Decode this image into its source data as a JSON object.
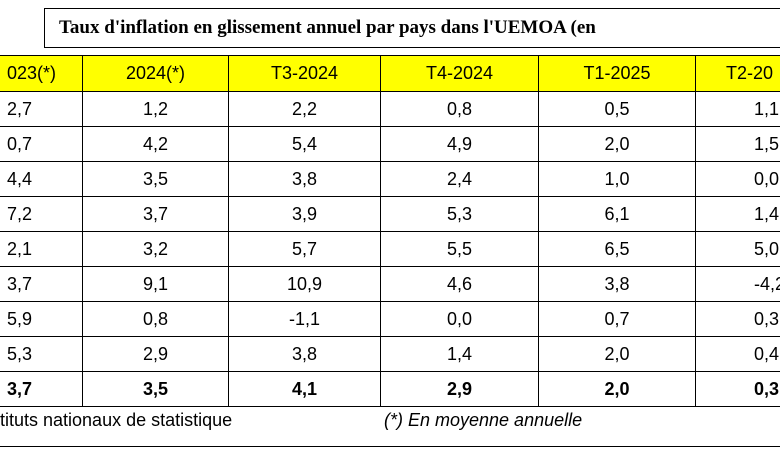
{
  "title": "Taux d'inflation en glissement annuel par pays dans l'UEMOA (en",
  "table": {
    "header": [
      "023(*)",
      "2024(*)",
      "T3-2024",
      "T4-2024",
      "T1-2025",
      "T2-20"
    ],
    "rows": [
      [
        "2,7",
        "1,2",
        "2,2",
        "0,8",
        "0,5",
        "1,1"
      ],
      [
        "0,7",
        "4,2",
        "5,4",
        "4,9",
        "2,0",
        "1,5"
      ],
      [
        "4,4",
        "3,5",
        "3,8",
        "2,4",
        "1,0",
        "0,0"
      ],
      [
        "7,2",
        "3,7",
        "3,9",
        "5,3",
        "6,1",
        "1,4"
      ],
      [
        "2,1",
        "3,2",
        "5,7",
        "5,5",
        "6,5",
        "5,0"
      ],
      [
        "3,7",
        "9,1",
        "10,9",
        "4,6",
        "3,8",
        "-4,2"
      ],
      [
        "5,9",
        "0,8",
        "-1,1",
        "0,0",
        "0,7",
        "0,3"
      ],
      [
        "5,3",
        "2,9",
        "3,8",
        "1,4",
        "2,0",
        "0,4"
      ],
      [
        "3,7",
        "3,5",
        "4,1",
        "2,9",
        "2,0",
        "0,3"
      ]
    ]
  },
  "footer": {
    "source": "tituts nationaux de statistique",
    "note": "(*) En moyenne annuelle"
  }
}
